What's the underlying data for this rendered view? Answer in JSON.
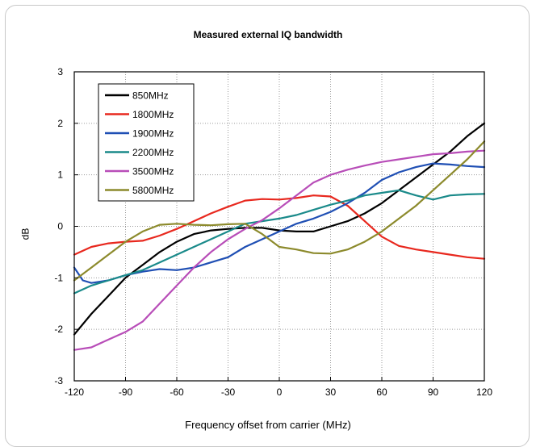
{
  "chart_data": {
    "type": "line",
    "title": "Measured external IQ bandwidth",
    "xlabel": "Frequency offset from carrier (MHz)",
    "ylabel": "dB",
    "xlim": [
      -120,
      120
    ],
    "ylim": [
      -3,
      3
    ],
    "xticks": [
      -120,
      -90,
      -60,
      -30,
      0,
      30,
      60,
      90,
      120
    ],
    "yticks": [
      -3,
      -2,
      -1,
      0,
      1,
      2,
      3
    ],
    "grid": true,
    "legend_position": "top-left",
    "series": [
      {
        "name": "850MHz",
        "color": "#000000",
        "x": [
          -120,
          -110,
          -100,
          -90,
          -80,
          -70,
          -60,
          -50,
          -40,
          -30,
          -20,
          -10,
          0,
          10,
          20,
          30,
          40,
          50,
          60,
          70,
          80,
          90,
          100,
          110,
          120
        ],
        "y": [
          -2.1,
          -1.7,
          -1.35,
          -1.0,
          -0.75,
          -0.5,
          -0.3,
          -0.15,
          -0.08,
          -0.05,
          -0.03,
          -0.03,
          -0.08,
          -0.1,
          -0.1,
          0.0,
          0.1,
          0.25,
          0.45,
          0.7,
          0.95,
          1.2,
          1.45,
          1.75,
          2.0
        ]
      },
      {
        "name": "1800MHz",
        "color": "#e8281e",
        "x": [
          -120,
          -110,
          -100,
          -90,
          -80,
          -70,
          -60,
          -50,
          -40,
          -30,
          -20,
          -10,
          0,
          10,
          20,
          30,
          40,
          50,
          60,
          70,
          80,
          90,
          100,
          110,
          120
        ],
        "y": [
          -0.55,
          -0.4,
          -0.33,
          -0.3,
          -0.28,
          -0.18,
          -0.05,
          0.1,
          0.25,
          0.38,
          0.5,
          0.53,
          0.52,
          0.55,
          0.6,
          0.58,
          0.4,
          0.1,
          -0.2,
          -0.38,
          -0.45,
          -0.5,
          -0.55,
          -0.6,
          -0.63
        ]
      },
      {
        "name": "1900MHz",
        "color": "#1f4fb4",
        "x": [
          -120,
          -115,
          -110,
          -100,
          -90,
          -80,
          -70,
          -60,
          -50,
          -40,
          -30,
          -20,
          -10,
          0,
          10,
          20,
          30,
          40,
          50,
          60,
          70,
          80,
          90,
          100,
          110,
          120
        ],
        "y": [
          -0.8,
          -1.05,
          -1.1,
          -1.05,
          -0.95,
          -0.88,
          -0.83,
          -0.85,
          -0.8,
          -0.7,
          -0.6,
          -0.4,
          -0.25,
          -0.1,
          0.05,
          0.15,
          0.28,
          0.45,
          0.65,
          0.9,
          1.05,
          1.15,
          1.22,
          1.2,
          1.17,
          1.15
        ]
      },
      {
        "name": "2200MHz",
        "color": "#1a8a8a",
        "x": [
          -120,
          -110,
          -100,
          -90,
          -80,
          -70,
          -60,
          -50,
          -40,
          -30,
          -20,
          -10,
          0,
          10,
          20,
          30,
          40,
          50,
          60,
          70,
          80,
          90,
          100,
          110,
          120
        ],
        "y": [
          -1.3,
          -1.15,
          -1.05,
          -0.95,
          -0.85,
          -0.7,
          -0.55,
          -0.4,
          -0.25,
          -0.1,
          0.05,
          0.1,
          0.15,
          0.22,
          0.32,
          0.42,
          0.5,
          0.6,
          0.65,
          0.7,
          0.6,
          0.52,
          0.6,
          0.62,
          0.63
        ]
      },
      {
        "name": "3500MHz",
        "color": "#b84db8",
        "x": [
          -120,
          -110,
          -100,
          -90,
          -80,
          -70,
          -60,
          -50,
          -40,
          -30,
          -20,
          -10,
          0,
          10,
          20,
          30,
          40,
          50,
          60,
          70,
          80,
          90,
          100,
          110,
          120
        ],
        "y": [
          -2.4,
          -2.35,
          -2.2,
          -2.05,
          -1.85,
          -1.5,
          -1.15,
          -0.8,
          -0.5,
          -0.25,
          -0.05,
          0.12,
          0.35,
          0.6,
          0.85,
          1.0,
          1.1,
          1.18,
          1.25,
          1.3,
          1.35,
          1.4,
          1.42,
          1.45,
          1.47
        ]
      },
      {
        "name": "5800MHz",
        "color": "#8c8a2c",
        "x": [
          -120,
          -110,
          -100,
          -90,
          -80,
          -70,
          -60,
          -50,
          -40,
          -30,
          -20,
          -10,
          0,
          10,
          20,
          30,
          40,
          50,
          60,
          70,
          80,
          90,
          100,
          110,
          120
        ],
        "y": [
          -1.05,
          -0.8,
          -0.55,
          -0.3,
          -0.1,
          0.03,
          0.05,
          0.03,
          0.02,
          0.04,
          0.05,
          -0.15,
          -0.4,
          -0.45,
          -0.52,
          -0.53,
          -0.45,
          -0.3,
          -0.1,
          0.15,
          0.4,
          0.7,
          1.0,
          1.3,
          1.65
        ]
      }
    ]
  }
}
